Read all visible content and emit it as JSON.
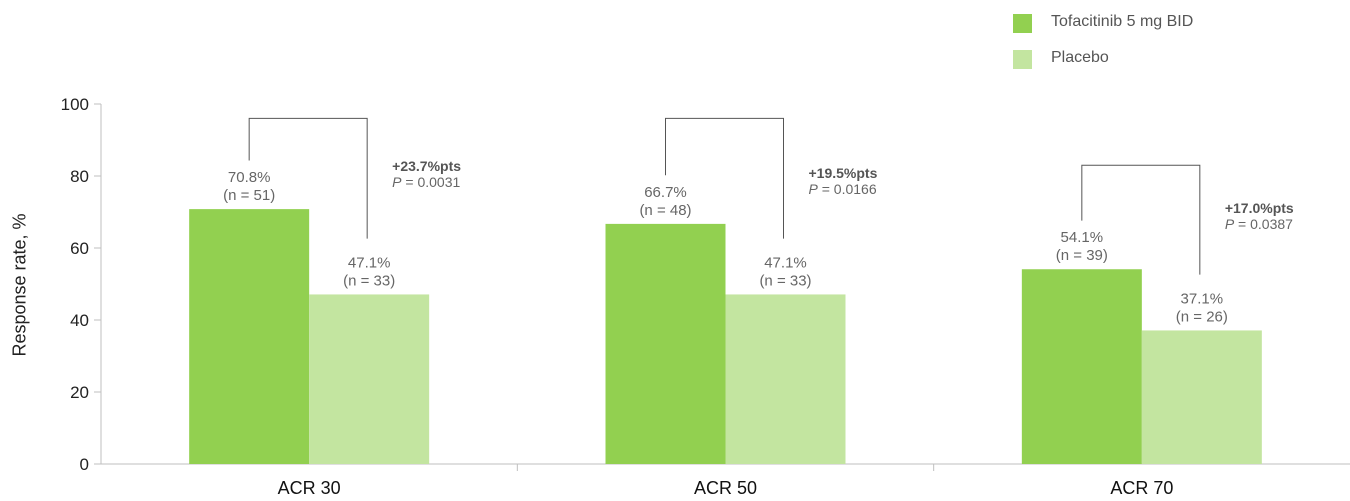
{
  "chart_data": {
    "type": "bar",
    "categories": [
      "ACR 30",
      "ACR 50",
      "ACR 70"
    ],
    "ylabel": "Response rate, %",
    "xlabel": "",
    "ylim": [
      0,
      100
    ],
    "yticks": [
      0,
      20,
      40,
      60,
      80,
      100
    ],
    "grid": false,
    "legend_position": "top-right",
    "series": [
      {
        "name": "Tofacitinib 5 mg BID",
        "color": "#92d050",
        "values": [
          70.8,
          66.7,
          54.1
        ],
        "labels": [
          "70.8%",
          "66.7%",
          "54.1%"
        ],
        "n_labels": [
          "(n = 51)",
          "(n = 48)",
          "(n = 39)"
        ]
      },
      {
        "name": "Placebo",
        "color": "#c3e5a0",
        "values": [
          47.1,
          47.1,
          37.1
        ],
        "labels": [
          "47.1%",
          "47.1%",
          "37.1%"
        ],
        "n_labels": [
          "(n = 33)",
          "(n = 33)",
          "(n = 26)"
        ]
      }
    ],
    "comparisons": [
      {
        "diff": "+23.7%pts",
        "p_prefix": "P",
        "p_value": " = 0.0031",
        "bracket_top": 96
      },
      {
        "diff": "+19.5%pts",
        "p_prefix": "P",
        "p_value": " = 0.0166",
        "bracket_top": 96
      },
      {
        "diff": "+17.0%pts",
        "p_prefix": "P",
        "p_value": " = 0.0387",
        "bracket_top": 83
      }
    ]
  }
}
